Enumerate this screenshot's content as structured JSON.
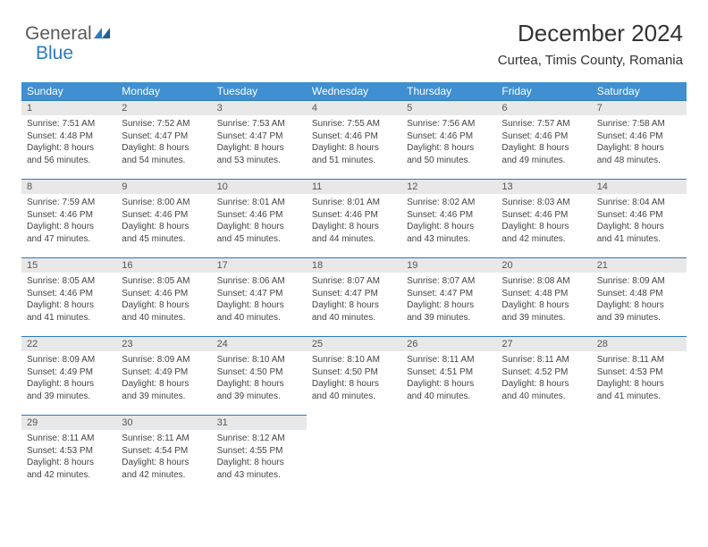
{
  "brand": {
    "part1": "General",
    "part2": "Blue"
  },
  "title": "December 2024",
  "location": "Curtea, Timis County, Romania",
  "colors": {
    "header_bg": "#3f8fd1",
    "header_text": "#ffffff",
    "daynum_bg": "#e8e8e8",
    "daynum_border": "#2b7bbf",
    "body_text": "#444444",
    "logo_gray": "#5a5a5a",
    "logo_blue": "#2b7bbf"
  },
  "weekdays": [
    "Sunday",
    "Monday",
    "Tuesday",
    "Wednesday",
    "Thursday",
    "Friday",
    "Saturday"
  ],
  "weeks": [
    [
      {
        "n": "1",
        "sunrise": "7:51 AM",
        "sunset": "4:48 PM",
        "dl1": "Daylight: 8 hours",
        "dl2": "and 56 minutes."
      },
      {
        "n": "2",
        "sunrise": "7:52 AM",
        "sunset": "4:47 PM",
        "dl1": "Daylight: 8 hours",
        "dl2": "and 54 minutes."
      },
      {
        "n": "3",
        "sunrise": "7:53 AM",
        "sunset": "4:47 PM",
        "dl1": "Daylight: 8 hours",
        "dl2": "and 53 minutes."
      },
      {
        "n": "4",
        "sunrise": "7:55 AM",
        "sunset": "4:46 PM",
        "dl1": "Daylight: 8 hours",
        "dl2": "and 51 minutes."
      },
      {
        "n": "5",
        "sunrise": "7:56 AM",
        "sunset": "4:46 PM",
        "dl1": "Daylight: 8 hours",
        "dl2": "and 50 minutes."
      },
      {
        "n": "6",
        "sunrise": "7:57 AM",
        "sunset": "4:46 PM",
        "dl1": "Daylight: 8 hours",
        "dl2": "and 49 minutes."
      },
      {
        "n": "7",
        "sunrise": "7:58 AM",
        "sunset": "4:46 PM",
        "dl1": "Daylight: 8 hours",
        "dl2": "and 48 minutes."
      }
    ],
    [
      {
        "n": "8",
        "sunrise": "7:59 AM",
        "sunset": "4:46 PM",
        "dl1": "Daylight: 8 hours",
        "dl2": "and 47 minutes."
      },
      {
        "n": "9",
        "sunrise": "8:00 AM",
        "sunset": "4:46 PM",
        "dl1": "Daylight: 8 hours",
        "dl2": "and 45 minutes."
      },
      {
        "n": "10",
        "sunrise": "8:01 AM",
        "sunset": "4:46 PM",
        "dl1": "Daylight: 8 hours",
        "dl2": "and 45 minutes."
      },
      {
        "n": "11",
        "sunrise": "8:01 AM",
        "sunset": "4:46 PM",
        "dl1": "Daylight: 8 hours",
        "dl2": "and 44 minutes."
      },
      {
        "n": "12",
        "sunrise": "8:02 AM",
        "sunset": "4:46 PM",
        "dl1": "Daylight: 8 hours",
        "dl2": "and 43 minutes."
      },
      {
        "n": "13",
        "sunrise": "8:03 AM",
        "sunset": "4:46 PM",
        "dl1": "Daylight: 8 hours",
        "dl2": "and 42 minutes."
      },
      {
        "n": "14",
        "sunrise": "8:04 AM",
        "sunset": "4:46 PM",
        "dl1": "Daylight: 8 hours",
        "dl2": "and 41 minutes."
      }
    ],
    [
      {
        "n": "15",
        "sunrise": "8:05 AM",
        "sunset": "4:46 PM",
        "dl1": "Daylight: 8 hours",
        "dl2": "and 41 minutes."
      },
      {
        "n": "16",
        "sunrise": "8:05 AM",
        "sunset": "4:46 PM",
        "dl1": "Daylight: 8 hours",
        "dl2": "and 40 minutes."
      },
      {
        "n": "17",
        "sunrise": "8:06 AM",
        "sunset": "4:47 PM",
        "dl1": "Daylight: 8 hours",
        "dl2": "and 40 minutes."
      },
      {
        "n": "18",
        "sunrise": "8:07 AM",
        "sunset": "4:47 PM",
        "dl1": "Daylight: 8 hours",
        "dl2": "and 40 minutes."
      },
      {
        "n": "19",
        "sunrise": "8:07 AM",
        "sunset": "4:47 PM",
        "dl1": "Daylight: 8 hours",
        "dl2": "and 39 minutes."
      },
      {
        "n": "20",
        "sunrise": "8:08 AM",
        "sunset": "4:48 PM",
        "dl1": "Daylight: 8 hours",
        "dl2": "and 39 minutes."
      },
      {
        "n": "21",
        "sunrise": "8:09 AM",
        "sunset": "4:48 PM",
        "dl1": "Daylight: 8 hours",
        "dl2": "and 39 minutes."
      }
    ],
    [
      {
        "n": "22",
        "sunrise": "8:09 AM",
        "sunset": "4:49 PM",
        "dl1": "Daylight: 8 hours",
        "dl2": "and 39 minutes."
      },
      {
        "n": "23",
        "sunrise": "8:09 AM",
        "sunset": "4:49 PM",
        "dl1": "Daylight: 8 hours",
        "dl2": "and 39 minutes."
      },
      {
        "n": "24",
        "sunrise": "8:10 AM",
        "sunset": "4:50 PM",
        "dl1": "Daylight: 8 hours",
        "dl2": "and 39 minutes."
      },
      {
        "n": "25",
        "sunrise": "8:10 AM",
        "sunset": "4:50 PM",
        "dl1": "Daylight: 8 hours",
        "dl2": "and 40 minutes."
      },
      {
        "n": "26",
        "sunrise": "8:11 AM",
        "sunset": "4:51 PM",
        "dl1": "Daylight: 8 hours",
        "dl2": "and 40 minutes."
      },
      {
        "n": "27",
        "sunrise": "8:11 AM",
        "sunset": "4:52 PM",
        "dl1": "Daylight: 8 hours",
        "dl2": "and 40 minutes."
      },
      {
        "n": "28",
        "sunrise": "8:11 AM",
        "sunset": "4:53 PM",
        "dl1": "Daylight: 8 hours",
        "dl2": "and 41 minutes."
      }
    ],
    [
      {
        "n": "29",
        "sunrise": "8:11 AM",
        "sunset": "4:53 PM",
        "dl1": "Daylight: 8 hours",
        "dl2": "and 42 minutes."
      },
      {
        "n": "30",
        "sunrise": "8:11 AM",
        "sunset": "4:54 PM",
        "dl1": "Daylight: 8 hours",
        "dl2": "and 42 minutes."
      },
      {
        "n": "31",
        "sunrise": "8:12 AM",
        "sunset": "4:55 PM",
        "dl1": "Daylight: 8 hours",
        "dl2": "and 43 minutes."
      },
      null,
      null,
      null,
      null
    ]
  ],
  "labels": {
    "sunrise_prefix": "Sunrise: ",
    "sunset_prefix": "Sunset: "
  }
}
